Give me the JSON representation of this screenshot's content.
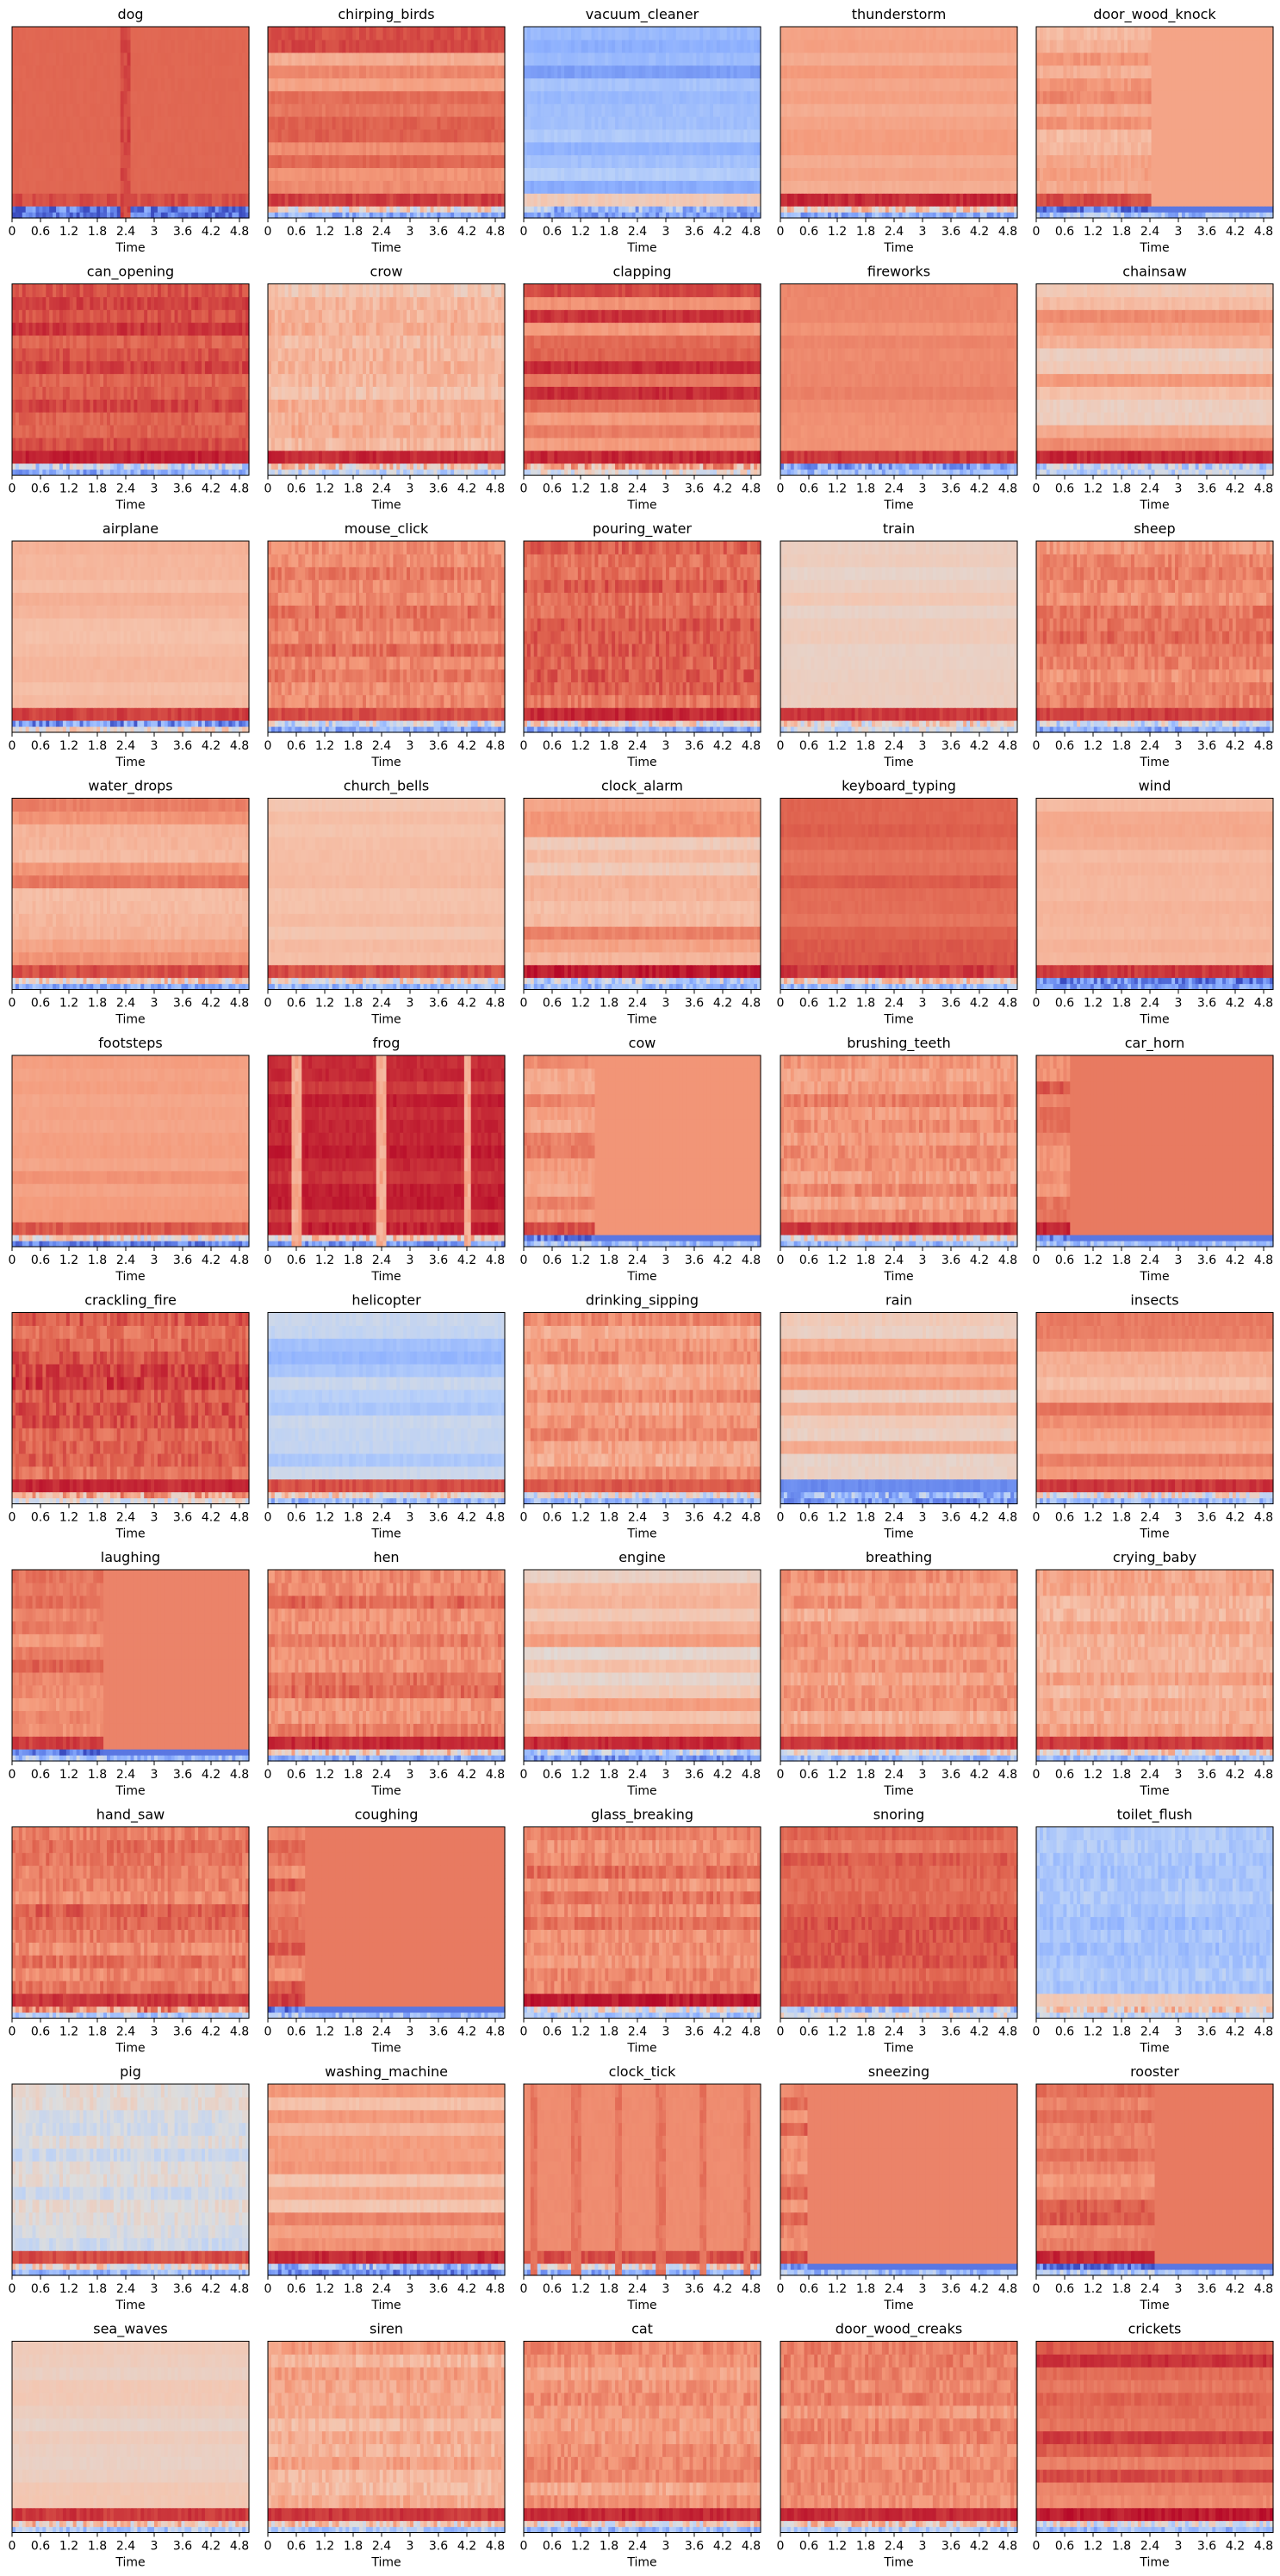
{
  "figure": {
    "colormap": "coolwarm",
    "xlabel": "Time",
    "xticks": [
      "0",
      "0.6",
      "1.2",
      "1.8",
      "2.4",
      "3",
      "3.6",
      "4.2",
      "4.8"
    ],
    "xlim": [
      0,
      5
    ]
  },
  "chart_data": [
    {
      "type": "heatmap",
      "title": "dog",
      "base": 0.86,
      "bottom": [
        0.1,
        0.1
      ],
      "hiband": 0.9,
      "pattern": "event",
      "events": [
        2.4
      ],
      "grid": false
    },
    {
      "type": "heatmap",
      "title": "chirping_birds",
      "base": 0.8,
      "bottom": [
        0.25,
        0.55
      ],
      "hiband": 0.92,
      "pattern": "stripes",
      "grid": false
    },
    {
      "type": "heatmap",
      "title": "vacuum_cleaner",
      "base": 0.3,
      "bottom": [
        0.2,
        0.3
      ],
      "hiband": 0.6,
      "pattern": "stripes",
      "grid": false
    },
    {
      "type": "heatmap",
      "title": "thunderstorm",
      "base": 0.72,
      "bottom": [
        0.25,
        0.6
      ],
      "hiband": 0.95,
      "pattern": "flat",
      "grid": false
    },
    {
      "type": "heatmap",
      "title": "door_wood_knock",
      "base": 0.72,
      "bottom": [
        0.3,
        0.1
      ],
      "hiband": 0.9,
      "pattern": "split",
      "split": 2.4,
      "grid": false
    },
    {
      "type": "heatmap",
      "title": "can_opening",
      "base": 0.9,
      "bottom": [
        0.25,
        0.4
      ],
      "hiband": 0.96,
      "pattern": "dense",
      "grid": false
    },
    {
      "type": "heatmap",
      "title": "crow",
      "base": 0.66,
      "bottom": [
        0.4,
        0.6
      ],
      "hiband": 0.95,
      "pattern": "noisy",
      "grid": false
    },
    {
      "type": "heatmap",
      "title": "clapping",
      "base": 0.84,
      "bottom": [
        0.5,
        0.7
      ],
      "hiband": 0.95,
      "pattern": "stripes",
      "grid": false
    },
    {
      "type": "heatmap",
      "title": "fireworks",
      "base": 0.78,
      "bottom": [
        0.3,
        0.25
      ],
      "hiband": 0.93,
      "pattern": "flat",
      "grid": false
    },
    {
      "type": "heatmap",
      "title": "chainsaw",
      "base": 0.68,
      "bottom": [
        0.4,
        0.4
      ],
      "hiband": 0.95,
      "pattern": "stripes",
      "grid": false
    },
    {
      "type": "heatmap",
      "title": "airplane",
      "base": 0.66,
      "bottom": [
        0.55,
        0.2
      ],
      "hiband": 0.92,
      "pattern": "flat",
      "grid": false
    },
    {
      "type": "heatmap",
      "title": "mouse_click",
      "base": 0.82,
      "bottom": [
        0.25,
        0.45
      ],
      "hiband": 0.9,
      "pattern": "noisy",
      "grid": false
    },
    {
      "type": "heatmap",
      "title": "pouring_water",
      "base": 0.86,
      "bottom": [
        0.25,
        0.55
      ],
      "hiband": 0.95,
      "pattern": "noisy",
      "grid": false
    },
    {
      "type": "heatmap",
      "title": "train",
      "base": 0.58,
      "bottom": [
        0.45,
        0.55
      ],
      "hiband": 0.93,
      "pattern": "flat",
      "grid": false
    },
    {
      "type": "heatmap",
      "title": "sheep",
      "base": 0.8,
      "bottom": [
        0.25,
        0.45
      ],
      "hiband": 0.92,
      "pattern": "noisy",
      "grid": false
    },
    {
      "type": "heatmap",
      "title": "water_drops",
      "base": 0.74,
      "bottom": [
        0.25,
        0.6
      ],
      "hiband": 0.9,
      "pattern": "stripes",
      "grid": false
    },
    {
      "type": "heatmap",
      "title": "church_bells",
      "base": 0.64,
      "bottom": [
        0.3,
        0.55
      ],
      "hiband": 0.9,
      "pattern": "flat",
      "grid": false
    },
    {
      "type": "heatmap",
      "title": "clock_alarm",
      "base": 0.7,
      "bottom": [
        0.3,
        0.4
      ],
      "hiband": 0.97,
      "pattern": "stripes",
      "grid": false
    },
    {
      "type": "heatmap",
      "title": "keyboard_typing",
      "base": 0.86,
      "bottom": [
        0.3,
        0.6
      ],
      "hiband": 0.93,
      "pattern": "flat",
      "grid": false
    },
    {
      "type": "heatmap",
      "title": "wind",
      "base": 0.68,
      "bottom": [
        0.2,
        0.15
      ],
      "hiband": 0.93,
      "pattern": "flat",
      "grid": false
    },
    {
      "type": "heatmap",
      "title": "footsteps",
      "base": 0.74,
      "bottom": [
        0.15,
        0.55
      ],
      "hiband": 0.88,
      "pattern": "flat",
      "grid": false
    },
    {
      "type": "heatmap",
      "title": "frog",
      "base": 0.95,
      "bottom": [
        0.2,
        0.6
      ],
      "hiband": 0.96,
      "pattern": "frog",
      "events": [
        0.6,
        2.4,
        4.2
      ],
      "grid": false
    },
    {
      "type": "heatmap",
      "title": "cow",
      "base": 0.76,
      "bottom": [
        0.3,
        0.1
      ],
      "hiband": 0.9,
      "pattern": "split",
      "split": 1.5,
      "grid": false
    },
    {
      "type": "heatmap",
      "title": "brushing_teeth",
      "base": 0.76,
      "bottom": [
        0.3,
        0.55
      ],
      "hiband": 0.93,
      "pattern": "noisy",
      "grid": false
    },
    {
      "type": "heatmap",
      "title": "car_horn",
      "base": 0.82,
      "bottom": [
        0.3,
        0.1
      ],
      "hiband": 0.95,
      "pattern": "split",
      "split": 0.7,
      "grid": false
    },
    {
      "type": "heatmap",
      "title": "crackling_fire",
      "base": 0.88,
      "bottom": [
        0.5,
        0.7
      ],
      "hiband": 0.95,
      "pattern": "noisy",
      "grid": false
    },
    {
      "type": "heatmap",
      "title": "helicopter",
      "base": 0.38,
      "bottom": [
        0.3,
        0.55
      ],
      "hiband": 0.9,
      "pattern": "stripes",
      "grid": false
    },
    {
      "type": "heatmap",
      "title": "drinking_sipping",
      "base": 0.74,
      "bottom": [
        0.3,
        0.5
      ],
      "hiband": 0.88,
      "pattern": "noisy",
      "grid": false
    },
    {
      "type": "heatmap",
      "title": "rain",
      "base": 0.66,
      "bottom": [
        0.2,
        0.3
      ],
      "hiband": 0.15,
      "pattern": "stripes",
      "grid": false
    },
    {
      "type": "heatmap",
      "title": "insects",
      "base": 0.74,
      "bottom": [
        0.3,
        0.5
      ],
      "hiband": 0.93,
      "pattern": "stripes",
      "grid": false
    },
    {
      "type": "heatmap",
      "title": "laughing",
      "base": 0.8,
      "bottom": [
        0.3,
        0.1
      ],
      "hiband": 0.92,
      "pattern": "split",
      "split": 1.9,
      "grid": false
    },
    {
      "type": "heatmap",
      "title": "hen",
      "base": 0.8,
      "bottom": [
        0.25,
        0.6
      ],
      "hiband": 0.95,
      "pattern": "noisy",
      "grid": false
    },
    {
      "type": "heatmap",
      "title": "engine",
      "base": 0.64,
      "bottom": [
        0.2,
        0.4
      ],
      "hiband": 0.95,
      "pattern": "stripes",
      "grid": false
    },
    {
      "type": "heatmap",
      "title": "breathing",
      "base": 0.74,
      "bottom": [
        0.3,
        0.55
      ],
      "hiband": 0.93,
      "pattern": "noisy",
      "grid": false
    },
    {
      "type": "heatmap",
      "title": "crying_baby",
      "base": 0.7,
      "bottom": [
        0.3,
        0.55
      ],
      "hiband": 0.93,
      "pattern": "noisy",
      "grid": false
    },
    {
      "type": "heatmap",
      "title": "hand_saw",
      "base": 0.82,
      "bottom": [
        0.35,
        0.75
      ],
      "hiband": 0.93,
      "pattern": "noisy",
      "grid": false
    },
    {
      "type": "heatmap",
      "title": "coughing",
      "base": 0.82,
      "bottom": [
        0.3,
        0.1
      ],
      "hiband": 0.92,
      "pattern": "split",
      "split": 0.8,
      "grid": false
    },
    {
      "type": "heatmap",
      "title": "glass_breaking",
      "base": 0.8,
      "bottom": [
        0.35,
        0.5
      ],
      "hiband": 0.97,
      "pattern": "noisy",
      "grid": false
    },
    {
      "type": "heatmap",
      "title": "snoring",
      "base": 0.86,
      "bottom": [
        0.5,
        0.35
      ],
      "hiband": 0.9,
      "pattern": "dense",
      "grid": false
    },
    {
      "type": "heatmap",
      "title": "toilet_flush",
      "base": 0.32,
      "bottom": [
        0.4,
        0.6
      ],
      "hiband": 0.6,
      "pattern": "noisy",
      "grid": false
    },
    {
      "type": "heatmap",
      "title": "pig",
      "base": 0.48,
      "bottom": [
        0.3,
        0.55
      ],
      "hiband": 0.9,
      "pattern": "noisy",
      "grid": false
    },
    {
      "type": "heatmap",
      "title": "washing_machine",
      "base": 0.7,
      "bottom": [
        0.15,
        0.3
      ],
      "hiband": 0.95,
      "pattern": "stripes",
      "grid": false
    },
    {
      "type": "heatmap",
      "title": "clock_tick",
      "base": 0.78,
      "bottom": [
        0.25,
        0.55
      ],
      "hiband": 0.9,
      "pattern": "event",
      "events": [
        0.2,
        1.1,
        2.0,
        2.9,
        3.8,
        4.7
      ],
      "grid": false
    },
    {
      "type": "heatmap",
      "title": "sneezing",
      "base": 0.8,
      "bottom": [
        0.3,
        0.2
      ],
      "hiband": 0.9,
      "pattern": "split",
      "split": 0.6,
      "grid": false
    },
    {
      "type": "heatmap",
      "title": "rooster",
      "base": 0.82,
      "bottom": [
        0.3,
        0.1
      ],
      "hiband": 0.95,
      "pattern": "split",
      "split": 2.5,
      "grid": false
    },
    {
      "type": "heatmap",
      "title": "sea_waves",
      "base": 0.58,
      "bottom": [
        0.35,
        0.6
      ],
      "hiband": 0.93,
      "pattern": "flat",
      "grid": false
    },
    {
      "type": "heatmap",
      "title": "siren",
      "base": 0.7,
      "bottom": [
        0.35,
        0.6
      ],
      "hiband": 0.93,
      "pattern": "noisy",
      "grid": false
    },
    {
      "type": "heatmap",
      "title": "cat",
      "base": 0.74,
      "bottom": [
        0.3,
        0.55
      ],
      "hiband": 0.95,
      "pattern": "noisy",
      "grid": false
    },
    {
      "type": "heatmap",
      "title": "door_wood_creaks",
      "base": 0.78,
      "bottom": [
        0.35,
        0.6
      ],
      "hiband": 0.95,
      "pattern": "noisy",
      "grid": false
    },
    {
      "type": "heatmap",
      "title": "crickets",
      "base": 0.88,
      "bottom": [
        0.3,
        0.5
      ],
      "hiband": 0.97,
      "pattern": "stripes",
      "grid": false
    }
  ]
}
